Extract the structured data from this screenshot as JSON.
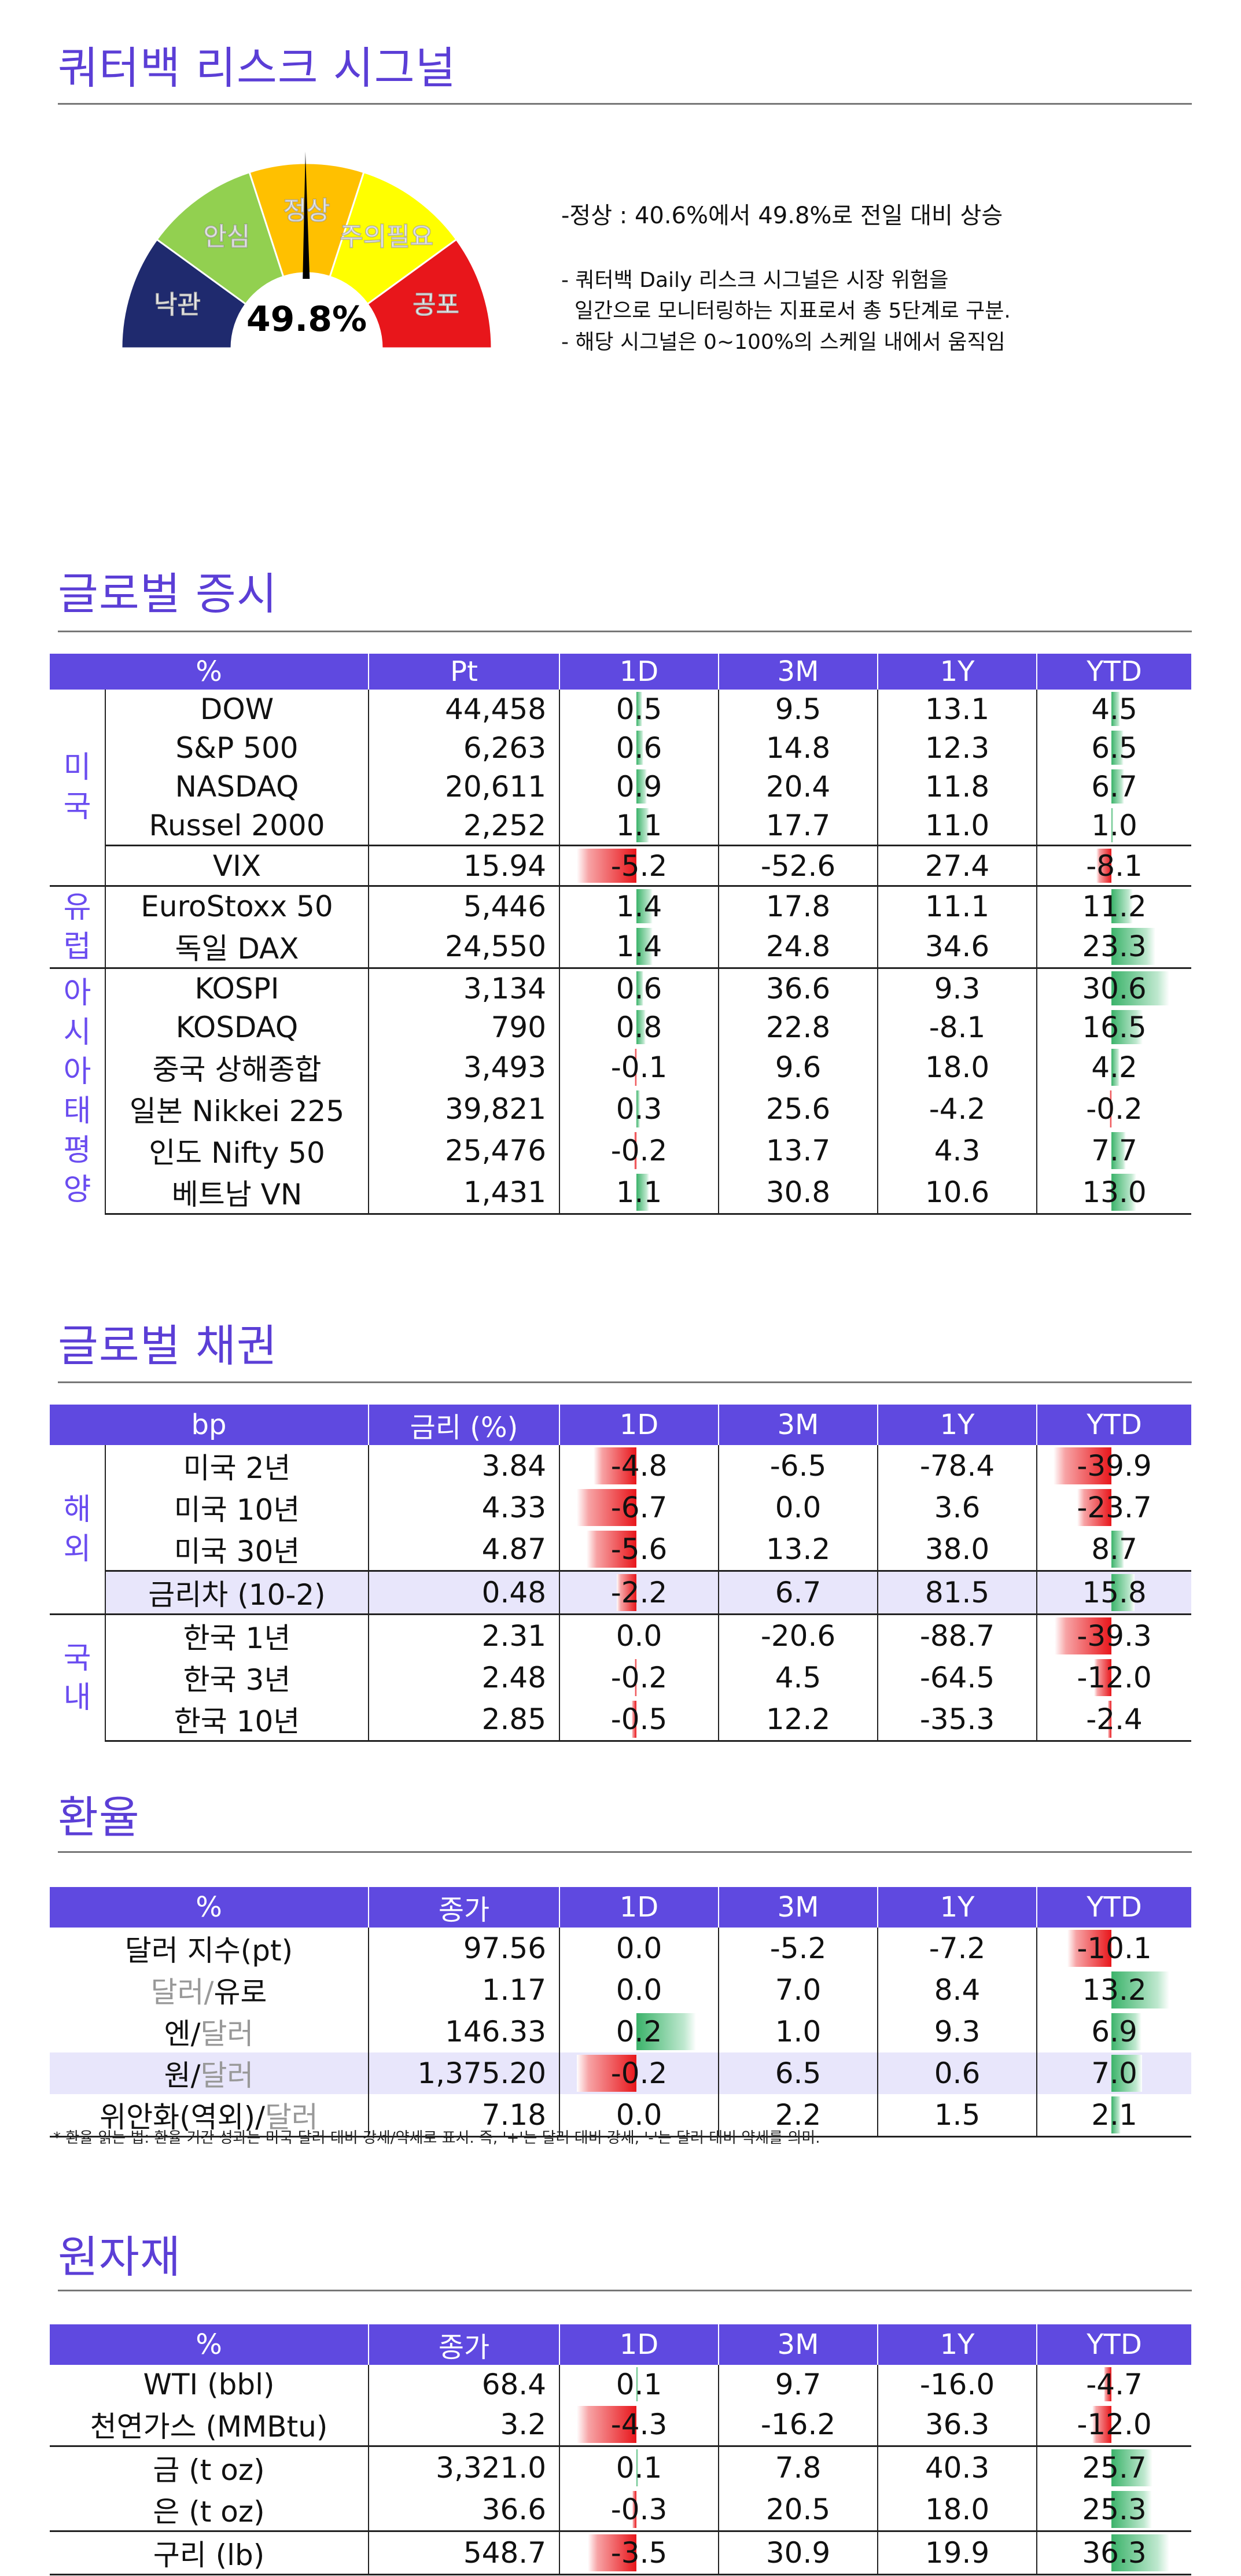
{
  "page": {
    "title": "쿼터백 리스크 시그널"
  },
  "gauge": {
    "value_text": "49.8%",
    "value": 49.8,
    "segments": [
      {
        "label": "낙관",
        "color": "#1f2a6e",
        "text_color": "#ffffff"
      },
      {
        "label": "안심",
        "color": "#92d050",
        "text_color": "#ffffff"
      },
      {
        "label": "정상",
        "color": "#ffc000",
        "text_color": "#ffffff"
      },
      {
        "label": "주의필요",
        "color": "#ffff00",
        "text_color": "#ffffff"
      },
      {
        "label": "공포",
        "color": "#e8161b",
        "text_color": "#ffffff"
      }
    ],
    "desc_main": "-정상 : 40.6%에서 49.8%로 전일 대비 상승",
    "desc_1": "- 쿼터백 Daily 리스크 시그널은 시장 위험을",
    "desc_2": "  일간으로 모니터링하는 지표로서 총 5단계로 구분.",
    "desc_3": "- 해당 시그널은 0~100%의 스케일 내에서 움직임"
  },
  "equity": {
    "title": "글로벌 증시",
    "headers": [
      "%",
      "Pt",
      "1D",
      "3M",
      "1Y",
      "YTD"
    ],
    "groups": [
      {
        "label": "미\n국",
        "rows": 5
      },
      {
        "label": "유\n럽",
        "rows": 2
      },
      {
        "label": "아\n시\n아\n태\n평\n양",
        "rows": 6
      }
    ],
    "rows": [
      {
        "name": "DOW",
        "v": "44,458",
        "d1": "0.5",
        "m3": "9.5",
        "y1": "13.1",
        "ytd": "4.5"
      },
      {
        "name": "S&P 500",
        "v": "6,263",
        "d1": "0.6",
        "m3": "14.8",
        "y1": "12.3",
        "ytd": "6.5"
      },
      {
        "name": "NASDAQ",
        "v": "20,611",
        "d1": "0.9",
        "m3": "20.4",
        "y1": "11.8",
        "ytd": "6.7"
      },
      {
        "name": "Russel 2000",
        "v": "2,252",
        "d1": "1.1",
        "m3": "17.7",
        "y1": "11.0",
        "ytd": "1.0"
      },
      {
        "name": "VIX",
        "v": "15.94",
        "d1": "-5.2",
        "m3": "-52.6",
        "y1": "27.4",
        "ytd": "-8.1"
      },
      {
        "name": "EuroStoxx 50",
        "v": "5,446",
        "d1": "1.4",
        "m3": "17.8",
        "y1": "11.1",
        "ytd": "11.2"
      },
      {
        "name": "독일 DAX",
        "v": "24,550",
        "d1": "1.4",
        "m3": "24.8",
        "y1": "34.6",
        "ytd": "23.3"
      },
      {
        "name": "KOSPI",
        "v": "3,134",
        "d1": "0.6",
        "m3": "36.6",
        "y1": "9.3",
        "ytd": "30.6"
      },
      {
        "name": "KOSDAQ",
        "v": "790",
        "d1": "0.8",
        "m3": "22.8",
        "y1": "-8.1",
        "ytd": "16.5"
      },
      {
        "name": "중국 상해종합",
        "v": "3,493",
        "d1": "-0.1",
        "m3": "9.6",
        "y1": "18.0",
        "ytd": "4.2"
      },
      {
        "name": "일본 Nikkei 225",
        "v": "39,821",
        "d1": "0.3",
        "m3": "25.6",
        "y1": "-4.2",
        "ytd": "-0.2"
      },
      {
        "name": "인도 Nifty 50",
        "v": "25,476",
        "d1": "-0.2",
        "m3": "13.7",
        "y1": "4.3",
        "ytd": "7.7"
      },
      {
        "name": "베트남 VN",
        "v": "1,431",
        "d1": "1.1",
        "m3": "30.8",
        "y1": "10.6",
        "ytd": "13.0"
      }
    ]
  },
  "bond": {
    "title": "글로벌 채권",
    "headers": [
      "bp",
      "금리 (%)",
      "1D",
      "3M",
      "1Y",
      "YTD"
    ],
    "groups": [
      {
        "label": "해\n외",
        "rows": 4
      },
      {
        "label": "국\n내",
        "rows": 3
      }
    ],
    "rows": [
      {
        "name": "미국 2년",
        "v": "3.84",
        "d1": "-4.8",
        "m3": "-6.5",
        "y1": "-78.4",
        "ytd": "-39.9"
      },
      {
        "name": "미국 10년",
        "v": "4.33",
        "d1": "-6.7",
        "m3": "0.0",
        "y1": "3.6",
        "ytd": "-23.7"
      },
      {
        "name": "미국 30년",
        "v": "4.87",
        "d1": "-5.6",
        "m3": "13.2",
        "y1": "38.0",
        "ytd": "8.7"
      },
      {
        "name": "금리차 (10-2)",
        "v": "0.48",
        "d1": "-2.2",
        "m3": "6.7",
        "y1": "81.5",
        "ytd": "15.8",
        "highlight": true
      },
      {
        "name": "한국 1년",
        "v": "2.31",
        "d1": "0.0",
        "m3": "-20.6",
        "y1": "-88.7",
        "ytd": "-39.3"
      },
      {
        "name": "한국 3년",
        "v": "2.48",
        "d1": "-0.2",
        "m3": "4.5",
        "y1": "-64.5",
        "ytd": "-12.0"
      },
      {
        "name": "한국 10년",
        "v": "2.85",
        "d1": "-0.5",
        "m3": "12.2",
        "y1": "-35.3",
        "ytd": "-2.4"
      }
    ]
  },
  "fx": {
    "title": "환율",
    "headers": [
      "%",
      "종가",
      "1D",
      "3M",
      "1Y",
      "YTD"
    ],
    "rows": [
      {
        "name_a": "달러 지수(pt)",
        "name_b": "",
        "v": "97.56",
        "d1": "0.0",
        "m3": "-5.2",
        "y1": "-7.2",
        "ytd": "-10.1"
      },
      {
        "name_a": "달러/",
        "name_b": "유로",
        "gray": "a",
        "v": "1.17",
        "d1": "0.0",
        "m3": "7.0",
        "y1": "8.4",
        "ytd": "13.2"
      },
      {
        "name_a": "엔/",
        "name_b": "달러",
        "gray": "b",
        "v": "146.33",
        "d1": "0.2",
        "m3": "1.0",
        "y1": "9.3",
        "ytd": "6.9"
      },
      {
        "name_a": "원/",
        "name_b": "달러",
        "gray": "b",
        "v": "1,375.20",
        "d1": "-0.2",
        "m3": "6.5",
        "y1": "0.6",
        "ytd": "7.0",
        "highlight": true
      },
      {
        "name_a": "위안화(역외)/",
        "name_b": "달러",
        "gray": "b",
        "v": "7.18",
        "d1": "0.0",
        "m3": "2.2",
        "y1": "1.5",
        "ytd": "2.1"
      }
    ],
    "note": "* 환율 읽는 법: 환율 기간 성과는 미국 달러 대비 강세/약세로 표시. 즉, '+'는 달러 대비 강세, '-'는 달러 대비 약세를 의미."
  },
  "commodity": {
    "title": "원자재",
    "headers": [
      "%",
      "종가",
      "1D",
      "3M",
      "1Y",
      "YTD"
    ],
    "rows": [
      {
        "name": "WTI (bbl)",
        "v": "68.4",
        "d1": "0.1",
        "m3": "9.7",
        "y1": "-16.0",
        "ytd": "-4.7"
      },
      {
        "name": "천연가스 (MMBtu)",
        "v": "3.2",
        "d1": "-4.3",
        "m3": "-16.2",
        "y1": "36.3",
        "ytd": "-12.0"
      },
      {
        "name": "금 (t oz)",
        "v": "3,321.0",
        "d1": "0.1",
        "m3": "7.8",
        "y1": "40.3",
        "ytd": "25.7",
        "sep": true
      },
      {
        "name": "은 (t oz)",
        "v": "36.6",
        "d1": "-0.3",
        "m3": "20.5",
        "y1": "18.0",
        "ytd": "25.3"
      },
      {
        "name": "구리 (lb)",
        "v": "548.7",
        "d1": "-3.5",
        "m3": "30.9",
        "y1": "19.9",
        "ytd": "36.3",
        "sep": true
      }
    ]
  }
}
